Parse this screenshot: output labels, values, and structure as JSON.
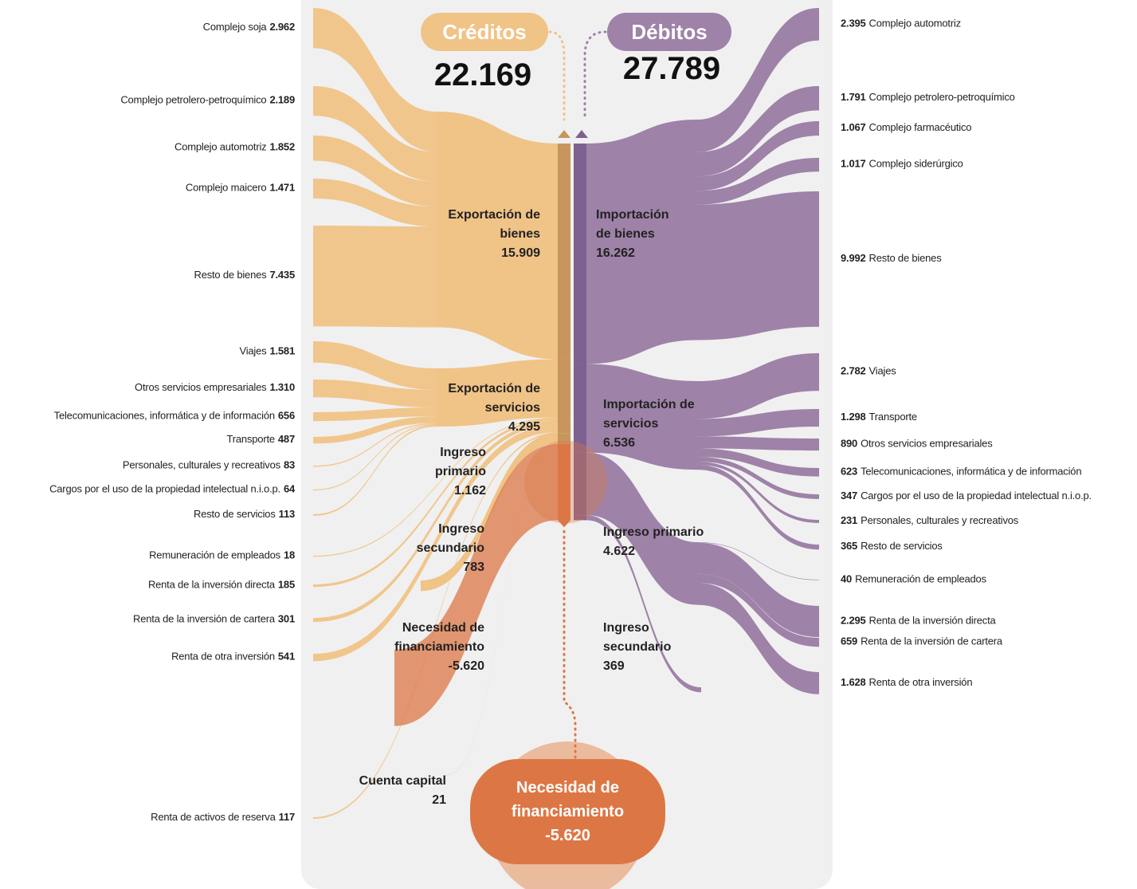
{
  "chart_data": {
    "type": "sankey",
    "credits": {
      "title": "Créditos",
      "total": 22169,
      "total_label": "22.169"
    },
    "debits": {
      "title": "Débitos",
      "total": 27789,
      "total_label": "27.789"
    },
    "left": [
      {
        "name": "Exportación de bienes",
        "value": 15909,
        "value_label": "15.909",
        "items": [
          {
            "name": "Complejo soja",
            "value": 2962,
            "value_label": "2.962"
          },
          {
            "name": "Complejo petrolero-petroquímico",
            "value": 2189,
            "value_label": "2.189"
          },
          {
            "name": "Complejo automotriz",
            "value": 1852,
            "value_label": "1.852"
          },
          {
            "name": "Complejo maicero",
            "value": 1471,
            "value_label": "1.471"
          },
          {
            "name": "Resto de bienes",
            "value": 7435,
            "value_label": "7.435"
          }
        ]
      },
      {
        "name": "Exportación de servicios",
        "value": 4295,
        "value_label": "4.295",
        "items": [
          {
            "name": "Viajes",
            "value": 1581,
            "value_label": "1.581"
          },
          {
            "name": "Otros servicios empresariales",
            "value": 1310,
            "value_label": "1.310"
          },
          {
            "name": "Telecomunicaciones, informática y de información",
            "value": 656,
            "value_label": "656"
          },
          {
            "name": "Transporte",
            "value": 487,
            "value_label": "487"
          },
          {
            "name": "Personales, culturales y recreativos",
            "value": 83,
            "value_label": "83"
          },
          {
            "name": "Cargos por el uso de la propiedad intelectual n.i.o.p.",
            "value": 64,
            "value_label": "64"
          },
          {
            "name": "Resto de servicios",
            "value": 113,
            "value_label": "113"
          }
        ]
      },
      {
        "name": "Ingreso primario",
        "value": 1162,
        "value_label": "1.162",
        "items": [
          {
            "name": "Remuneración de empleados",
            "value": 18,
            "value_label": "18"
          },
          {
            "name": "Renta de la inversión directa",
            "value": 185,
            "value_label": "185"
          },
          {
            "name": "Renta de la inversión de cartera",
            "value": 301,
            "value_label": "301"
          },
          {
            "name": "Renta de otra inversión",
            "value": 541,
            "value_label": "541"
          },
          {
            "name": "Renta de activos de reserva",
            "value": 117,
            "value_label": "117"
          }
        ]
      },
      {
        "name": "Ingreso secundario",
        "value": 783,
        "value_label": "783",
        "items": []
      },
      {
        "name": "Cuenta capital",
        "value": 21,
        "value_label": "21",
        "items": []
      },
      {
        "name": "Necesidad de financiamiento",
        "value": -5620,
        "value_label": "-5.620",
        "items": []
      }
    ],
    "right": [
      {
        "name": "Importación de bienes",
        "value": 16262,
        "value_label": "16.262",
        "items": [
          {
            "name": "Complejo automotriz",
            "value": 2395,
            "value_label": "2.395"
          },
          {
            "name": "Complejo petrolero-petroquímico",
            "value": 1791,
            "value_label": "1.791"
          },
          {
            "name": "Complejo farmacéutico",
            "value": 1067,
            "value_label": "1.067"
          },
          {
            "name": "Complejo siderúrgico",
            "value": 1017,
            "value_label": "1.017"
          },
          {
            "name": "Resto de bienes",
            "value": 9992,
            "value_label": "9.992"
          }
        ]
      },
      {
        "name": "Importación de servicios",
        "value": 6536,
        "value_label": "6.536",
        "items": [
          {
            "name": "Viajes",
            "value": 2782,
            "value_label": "2.782"
          },
          {
            "name": "Transporte",
            "value": 1298,
            "value_label": "1.298"
          },
          {
            "name": "Otros servicios empresariales",
            "value": 890,
            "value_label": "890"
          },
          {
            "name": "Telecomunicaciones, informática y de información",
            "value": 623,
            "value_label": "623"
          },
          {
            "name": "Cargos por el uso de la propiedad intelectual n.i.o.p.",
            "value": 347,
            "value_label": "347"
          },
          {
            "name": "Personales, culturales y recreativos",
            "value": 231,
            "value_label": "231"
          },
          {
            "name": "Resto de servicios",
            "value": 365,
            "value_label": "365"
          }
        ]
      },
      {
        "name": "Ingreso primario",
        "value": 4622,
        "value_label": "4.622",
        "items": [
          {
            "name": "Remuneración de empleados",
            "value": 40,
            "value_label": "40"
          },
          {
            "name": "Renta de la inversión directa",
            "value": 2295,
            "value_label": "2.295"
          },
          {
            "name": "Renta de la inversión de cartera",
            "value": 659,
            "value_label": "659"
          },
          {
            "name": "Renta de otra inversión",
            "value": 1628,
            "value_label": "1.628"
          }
        ]
      },
      {
        "name": "Ingreso secundario",
        "value": 369,
        "value_label": "369",
        "items": []
      }
    ],
    "result": {
      "name": "Necesidad de financiamiento",
      "value": -5620,
      "value_label": "-5.620"
    },
    "colors": {
      "credits": "#f0c386",
      "credits_bar": "#c8955e",
      "debits": "#9e82a8",
      "debits_bar": "#7d6190",
      "result": "#dc7745",
      "result_halo": "#ebbb9e"
    }
  }
}
